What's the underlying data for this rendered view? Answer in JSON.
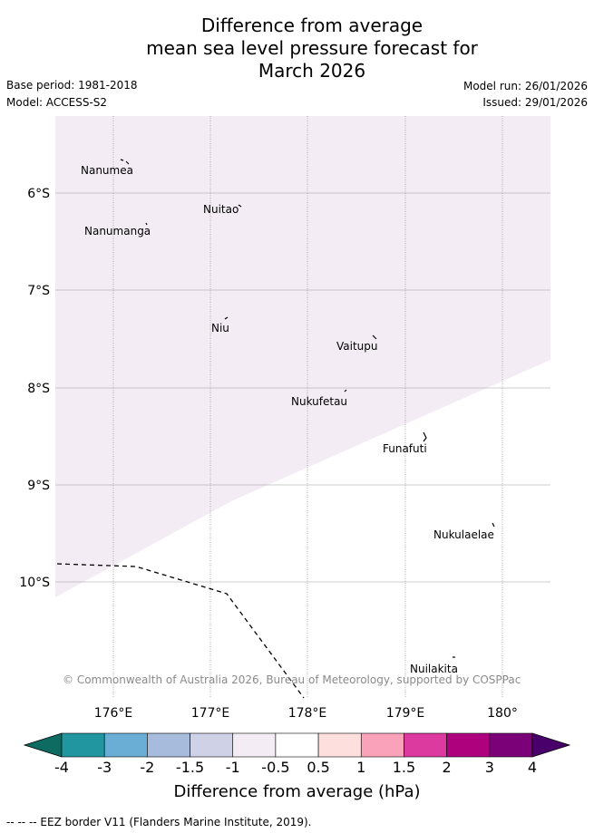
{
  "title": {
    "line1": "Difference from average",
    "line2": "mean sea level pressure forecast for",
    "line3": "March 2026"
  },
  "meta": {
    "base_period": "Base period: 1981-2018",
    "model": "Model: ACCESS-S2",
    "model_run": "Model run: 26/01/2026",
    "issued": "Issued: 29/01/2026"
  },
  "map": {
    "lon_labels": [
      "176°E",
      "177°E",
      "178°E",
      "179°E",
      "180°"
    ],
    "lat_labels": [
      "6°S",
      "7°S",
      "8°S",
      "9°S",
      "10°S"
    ],
    "places": [
      "Nanumea",
      "Nuitao",
      "Nanumanga",
      "Niu",
      "Vaitupu",
      "Nukufetau",
      "Funafuti",
      "Nukulaelae",
      "Nuilakita"
    ],
    "copyright": "© Commonwealth of Australia 2026, Bureau of Meteorology, supported by COSPPac",
    "anomaly_fill_color": "#f4ecf5",
    "grid_color": "#999999"
  },
  "colorbar": {
    "labels": [
      "-4",
      "-3",
      "-2",
      "-1.5",
      "-1",
      "-0.5",
      "0.5",
      "1",
      "1.5",
      "2",
      "3",
      "4"
    ],
    "colors": [
      "#0e6b62",
      "#2196a0",
      "#6aaed6",
      "#a7bbdd",
      "#cfd1e6",
      "#f4ecf5",
      "#ffffff",
      "#fde0de",
      "#f9a2b9",
      "#dc3a9f",
      "#ae017e",
      "#7a0177",
      "#49006a"
    ],
    "title": "Difference from average (hPa)"
  },
  "legend": {
    "eez": "--  --  -- EEZ border V11 (Flanders Marine Institute, 2019)."
  }
}
